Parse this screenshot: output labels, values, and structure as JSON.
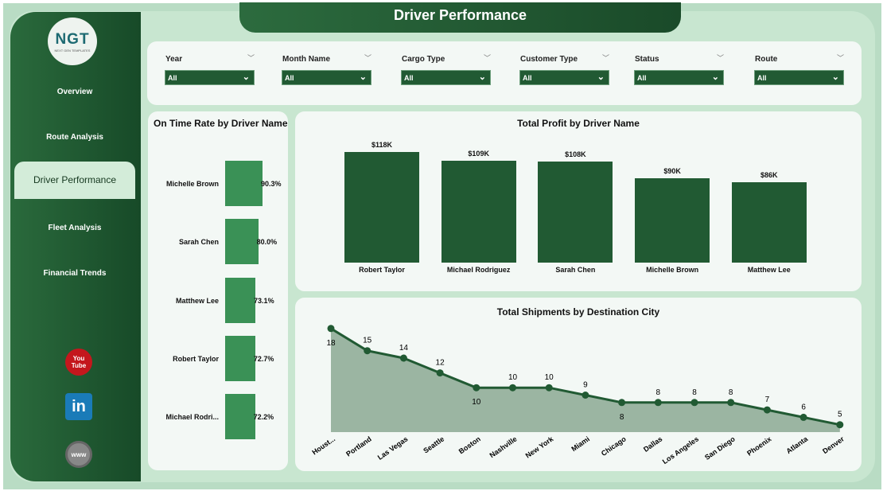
{
  "page_title": "Driver Performance",
  "logo": {
    "text": "NGT",
    "subtitle": "NEXT GEN TEMPLATES"
  },
  "sidebar": {
    "items": [
      {
        "label": "Overview"
      },
      {
        "label": "Route Analysis"
      },
      {
        "label": "Driver Performance",
        "active": true
      },
      {
        "label": "Fleet Analysis"
      },
      {
        "label": "Financial Trends"
      }
    ],
    "social": [
      {
        "icon": "youtube-icon",
        "label": "You Tube"
      },
      {
        "icon": "linkedin-icon",
        "label": "in"
      },
      {
        "icon": "globe-icon",
        "label": "www"
      }
    ]
  },
  "filters": [
    {
      "label": "Year",
      "value": "All"
    },
    {
      "label": "Month Name",
      "value": "All"
    },
    {
      "label": "Cargo Type",
      "value": "All"
    },
    {
      "label": "Customer Type",
      "value": "All"
    },
    {
      "label": "Status",
      "value": "All"
    },
    {
      "label": "Route",
      "value": "All"
    }
  ],
  "colors": {
    "accent": "#215a33",
    "bar_light": "#3a9156",
    "area": "#9bb5a2"
  },
  "chart_data": [
    {
      "type": "bar",
      "orientation": "horizontal",
      "title": "On Time Rate by Driver Name",
      "categories": [
        "Michelle Brown",
        "Sarah Chen",
        "Matthew Lee",
        "Robert Taylor",
        "Michael Rodri..."
      ],
      "values": [
        90.3,
        80.0,
        73.1,
        72.7,
        72.2
      ],
      "labels": [
        "90.3%",
        "80.0%",
        "73.1%",
        "72.7%",
        "72.2%"
      ]
    },
    {
      "type": "bar",
      "title": "Total Profit by Driver Name",
      "categories": [
        "Robert Taylor",
        "Michael Rodriguez",
        "Sarah Chen",
        "Michelle Brown",
        "Matthew Lee"
      ],
      "values": [
        118,
        109,
        108,
        90,
        86
      ],
      "labels": [
        "$118K",
        "$109K",
        "$108K",
        "$90K",
        "$86K"
      ]
    },
    {
      "type": "area",
      "title": "Total Shipments by Destination City",
      "categories": [
        "Houst...",
        "Portland",
        "Las Vegas",
        "Seattle",
        "Boston",
        "Nashville",
        "New York",
        "Miami",
        "Chicago",
        "Dallas",
        "Los Angeles",
        "San Diego",
        "Phoenix",
        "Atlanta",
        "Denver"
      ],
      "values": [
        18,
        15,
        14,
        12,
        10,
        10,
        10,
        9,
        8,
        8,
        8,
        8,
        7,
        6,
        5
      ]
    }
  ]
}
